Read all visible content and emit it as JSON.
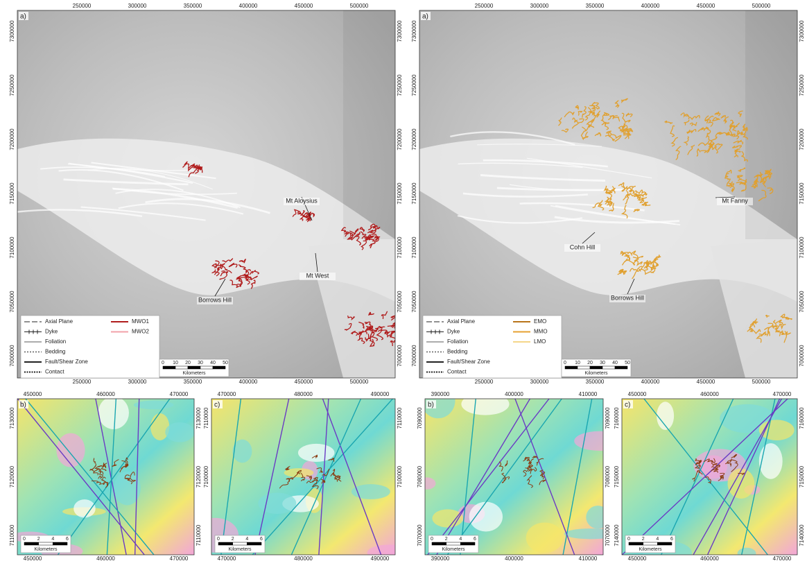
{
  "panels": [
    {
      "label": "a)",
      "x_ticks": [
        250000,
        300000,
        350000,
        400000,
        450000,
        500000
      ],
      "y_ticks": [
        7300000,
        7250000,
        7200000,
        7150000,
        7100000,
        7050000,
        7000000
      ],
      "places": [
        "Mt Aloysius",
        "Mt West",
        "Borrows Hill"
      ],
      "legend": {
        "lines": [
          "Axial Plane",
          "Dyke",
          "Foliation",
          "Bedding",
          "Fault/Shear Zone",
          "Contact"
        ],
        "units": [
          {
            "name": "MWO1",
            "color": "#b01c1c"
          },
          {
            "name": "MWO2",
            "color": "#f2a0a8"
          }
        ]
      },
      "scale_bar": {
        "ticks": [
          0,
          10,
          20,
          30,
          40,
          50
        ],
        "unit": "Kilometers"
      }
    },
    {
      "label": "a)",
      "x_ticks": [
        250000,
        300000,
        350000,
        400000,
        450000,
        500000
      ],
      "y_ticks": [
        7300000,
        7250000,
        7200000,
        7150000,
        7100000,
        7050000,
        7000000
      ],
      "places": [
        "Mt Fanny",
        "Cohn Hill",
        "Borrows Hill"
      ],
      "legend": {
        "lines": [
          "Axial Plane",
          "Dyke",
          "Foliation",
          "Bedding",
          "Fault/Shear Zone",
          "Contact"
        ],
        "units": [
          {
            "name": "EMO",
            "color": "#b8741a"
          },
          {
            "name": "MMO",
            "color": "#e6a032"
          },
          {
            "name": "LMO",
            "color": "#f5d68a"
          }
        ]
      },
      "scale_bar": {
        "ticks": [
          0,
          10,
          20,
          30,
          40,
          50
        ],
        "unit": "Kilometers"
      }
    },
    {
      "label": "b)",
      "x_ticks": [
        450000,
        460000,
        470000
      ],
      "y_ticks": [
        7130000,
        7120000,
        7110000
      ],
      "scale_bar": {
        "ticks": [
          0,
          2,
          4,
          6
        ],
        "unit": "Kilometers"
      }
    },
    {
      "label": "c)",
      "x_ticks": [
        470000,
        480000,
        490000
      ],
      "y_ticks": [
        7110000,
        7100000
      ],
      "scale_bar": {
        "ticks": [
          0,
          2,
          4,
          6
        ],
        "unit": "Kilometers"
      }
    },
    {
      "label": "b)",
      "x_ticks": [
        390000,
        400000,
        410000
      ],
      "y_ticks": [
        7090000,
        7080000,
        7070000
      ],
      "scale_bar": {
        "ticks": [
          0,
          2,
          4,
          6
        ],
        "unit": "Kilometers"
      }
    },
    {
      "label": "c)",
      "x_ticks": [
        450000,
        460000,
        470000
      ],
      "y_ticks": [
        7160000,
        7150000,
        7140000
      ],
      "scale_bar": {
        "ticks": [
          0,
          2,
          4,
          6
        ],
        "unit": "Kilometers"
      }
    }
  ]
}
